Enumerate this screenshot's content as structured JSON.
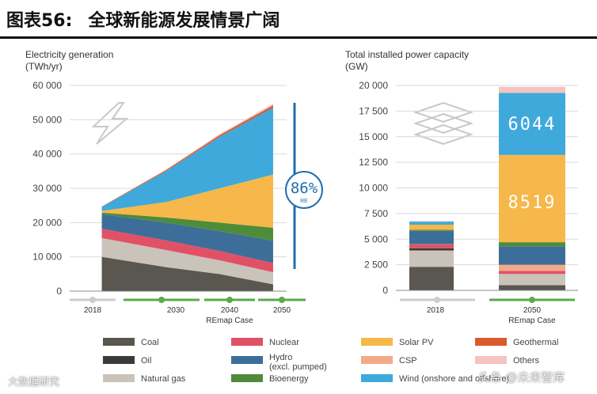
{
  "header": {
    "figure_label": "图表56:",
    "title": "全球新能源发展情景广阔"
  },
  "watermarks": {
    "left": "大数据研究",
    "right": "头条 @未来智库"
  },
  "chart_data": [
    {
      "type": "area",
      "title_line1": "Electricity generation",
      "title_line2": "(TWh/yr)",
      "x": [
        "2018",
        "2030",
        "2040",
        "2050"
      ],
      "x_positions": [
        2018,
        2030,
        2040,
        2050
      ],
      "xlabel": "REmap Case",
      "ylim": [
        0,
        60000
      ],
      "yticks": [
        "60 000",
        "50 000",
        "40 000",
        "30 000",
        "20 000",
        "10 000",
        "0"
      ],
      "ytick_values": [
        60000,
        50000,
        40000,
        30000,
        20000,
        10000,
        0
      ],
      "series": [
        {
          "name": "Coal",
          "color": "#5a5650",
          "values": [
            10000,
            7000,
            5000,
            2000
          ]
        },
        {
          "name": "Natural gas",
          "color": "#c9c3ba",
          "values": [
            5500,
            5000,
            4000,
            3500
          ]
        },
        {
          "name": "Nuclear",
          "color": "#e15166",
          "values": [
            2700,
            2800,
            2700,
            2700
          ]
        },
        {
          "name": "Hydro (excl. pumped)",
          "color": "#3d6e99",
          "values": [
            4200,
            5200,
            5800,
            6500
          ]
        },
        {
          "name": "Bioenergy",
          "color": "#4e8c3a",
          "values": [
            500,
            1500,
            2500,
            3800
          ]
        },
        {
          "name": "Solar PV",
          "color": "#f6b84a",
          "values": [
            500,
            4500,
            10000,
            15500
          ]
        },
        {
          "name": "Wind",
          "color": "#3fa9dc",
          "values": [
            1200,
            9000,
            15000,
            19500
          ]
        },
        {
          "name": "Geothermal",
          "color": "#d95a2b",
          "values": [
            100,
            300,
            500,
            700
          ]
        },
        {
          "name": "Others",
          "color": "#f5c3c0",
          "values": [
            0,
            200,
            300,
            500
          ]
        }
      ],
      "annotation": {
        "value": "86%",
        "sub": "RE"
      }
    },
    {
      "type": "bar",
      "title_line1": "Total installed power capacity",
      "title_line2": "(GW)",
      "categories": [
        "2018",
        "2050"
      ],
      "xlabel": "REmap Case",
      "ylim": [
        0,
        20000
      ],
      "yticks": [
        "20 000",
        "17 500",
        "15 000",
        "12 500",
        "10 000",
        "7 500",
        "5 000",
        "2 500",
        "0"
      ],
      "ytick_values": [
        20000,
        17500,
        15000,
        12500,
        10000,
        7500,
        5000,
        2500,
        0
      ],
      "series": [
        {
          "name": "Coal",
          "color": "#5a5650",
          "values": [
            2300,
            500
          ]
        },
        {
          "name": "Natural gas",
          "color": "#c9c3ba",
          "values": [
            1600,
            1100
          ]
        },
        {
          "name": "Oil",
          "color": "#3a3a3a",
          "values": [
            200,
            0
          ]
        },
        {
          "name": "Nuclear",
          "color": "#e15166",
          "values": [
            400,
            300
          ]
        },
        {
          "name": "CSP",
          "color": "#f4a98a",
          "values": [
            10,
            600
          ]
        },
        {
          "name": "Hydro (excl. pumped)",
          "color": "#3d6e99",
          "values": [
            1300,
            1800
          ]
        },
        {
          "name": "Bioenergy",
          "color": "#4e8c3a",
          "values": [
            100,
            400
          ]
        },
        {
          "name": "Solar PV",
          "color": "#f6b84a",
          "values": [
            500,
            8519
          ]
        },
        {
          "name": "Wind",
          "color": "#3fa9dc",
          "values": [
            300,
            6044
          ]
        },
        {
          "name": "Others",
          "color": "#f5c3c0",
          "values": [
            50,
            600
          ]
        }
      ],
      "labels": {
        "solar_2050": "8519",
        "wind_2050": "6044"
      }
    }
  ],
  "legend": [
    {
      "label": "Coal",
      "color": "#5a5650"
    },
    {
      "label": "Nuclear",
      "color": "#e15166"
    },
    {
      "label": "Solar PV",
      "color": "#f6b84a"
    },
    {
      "label": "Geothermal",
      "color": "#d95a2b"
    },
    {
      "label": "Oil",
      "color": "#3a3a3a"
    },
    {
      "label": "Hydro",
      "label2": "(excl. pumped)",
      "color": "#3d6e99"
    },
    {
      "label": "CSP",
      "color": "#f4a98a"
    },
    {
      "label": "Others",
      "color": "#f5c3c0"
    },
    {
      "label": "Natural gas",
      "color": "#c9c3ba"
    },
    {
      "label": "Bioenergy",
      "color": "#4e8c3a"
    },
    {
      "label": "Wind (onshore and offshore)",
      "color": "#3fa9dc"
    }
  ]
}
